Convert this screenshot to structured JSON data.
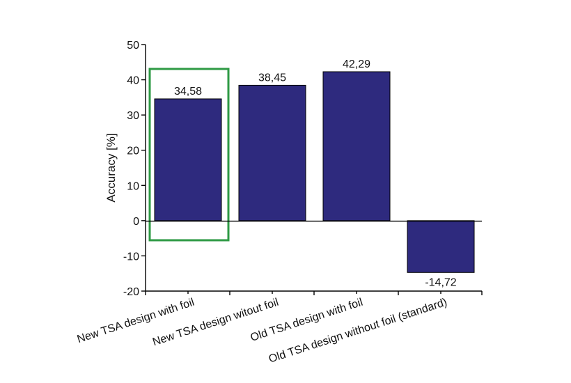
{
  "chart_data": {
    "type": "bar",
    "categories": [
      "New TSA design with foil",
      "New TSA design witout foil",
      "Old TSA design with foil",
      "Old TSA design without foil (standard)"
    ],
    "values": [
      34.58,
      38.45,
      42.29,
      -14.72
    ],
    "data_labels": [
      "34,58",
      "38,45",
      "42,29",
      "-14,72"
    ],
    "title": "",
    "xlabel": "",
    "ylabel": "Accuracy [%]",
    "ylim": [
      -20,
      50
    ],
    "yticks": [
      -20,
      -10,
      0,
      10,
      20,
      30,
      40,
      50
    ],
    "ytick_labels": [
      "-20",
      "-10",
      "0",
      "10",
      "20",
      "30",
      "40",
      "50"
    ],
    "grid": false,
    "legend": "none",
    "bar_color": "#2e2a7e",
    "highlight": {
      "category_index": 0,
      "color": "#2e9a44"
    }
  }
}
